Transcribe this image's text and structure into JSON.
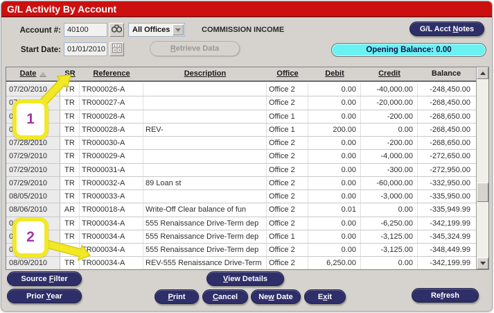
{
  "window": {
    "title": "G/L Activity By Account"
  },
  "toolbar": {
    "account_label": "Account #:",
    "account_value": "40100",
    "office_filter_value": "All Offices",
    "account_name": "COMMISSION INCOME",
    "start_date_label": "Start Date:",
    "start_date_value": "01/01/2010",
    "retrieve_button": {
      "pre": "",
      "key": "R",
      "post": "etrieve Data"
    },
    "notes_button": {
      "pre": "G/L Acct ",
      "key": "N",
      "post": "otes"
    },
    "opening_balance": "Opening Balance: 0.00"
  },
  "icons": {
    "find": "binoculars-icon",
    "date_picker": "calendar-icon",
    "office_dropdown": "chevron-down-icon",
    "date_sort": "sort-ascending-icon"
  },
  "table": {
    "columns": [
      {
        "label": "Date",
        "underline": true,
        "sort": "asc"
      },
      {
        "label": "SR",
        "underline": true
      },
      {
        "label": "Reference",
        "underline": true
      },
      {
        "label": "Description",
        "underline": true
      },
      {
        "label": "Office",
        "underline": true
      },
      {
        "label": "Debit",
        "underline": true
      },
      {
        "label": "Credit",
        "underline": true
      },
      {
        "label": "Balance",
        "underline": false
      }
    ],
    "column_keys": [
      "date",
      "sr",
      "reference",
      "description",
      "office",
      "debit",
      "credit",
      "balance"
    ],
    "rows": [
      [
        "07/20/2010",
        "TR",
        "TR000026-A",
        "",
        "Office 2",
        "0.00",
        "-40,000.00",
        "-248,450.00"
      ],
      [
        "07/21/2010",
        "TR",
        "TR000027-A",
        "",
        "Office 2",
        "0.00",
        "-20,000.00",
        "-268,450.00"
      ],
      [
        "07/26/2010",
        "TR",
        "TR000028-A",
        "",
        "Office 1",
        "0.00",
        "-200.00",
        "-268,650.00"
      ],
      [
        "07/26/2010",
        "TR",
        "TR000028-A",
        "REV-",
        "Office 1",
        "200.00",
        "0.00",
        "-268,450.00"
      ],
      [
        "07/28/2010",
        "TR",
        "TR000030-A",
        "",
        "Office 2",
        "0.00",
        "-200.00",
        "-268,650.00"
      ],
      [
        "07/29/2010",
        "TR",
        "TR000029-A",
        "",
        "Office 2",
        "0.00",
        "-4,000.00",
        "-272,650.00"
      ],
      [
        "07/29/2010",
        "TR",
        "TR000031-A",
        "",
        "Office 2",
        "0.00",
        "-300.00",
        "-272,950.00"
      ],
      [
        "07/29/2010",
        "TR",
        "TR000032-A",
        "89 Loan st",
        "Office 2",
        "0.00",
        "-60,000.00",
        "-332,950.00"
      ],
      [
        "08/05/2010",
        "TR",
        "TR000033-A",
        "",
        "Office 2",
        "0.00",
        "-3,000.00",
        "-335,950.00"
      ],
      [
        "08/06/2010",
        "AR",
        "TR000018-A",
        "Write-Off Clear balance of fun",
        "Office 2",
        "0.01",
        "0.00",
        "-335,949.99"
      ],
      [
        "08/09/2010",
        "TR",
        "TR000034-A",
        "555 Renaissance Drive-Term dep",
        "Office 2",
        "0.00",
        "-6,250.00",
        "-342,199.99"
      ],
      [
        "08/09/2010",
        "TR",
        "TR000034-A",
        "555 Renaissance Drive-Term dep",
        "Office 1",
        "0.00",
        "-3,125.00",
        "-345,324.99"
      ],
      [
        "08/09/2010",
        "TR",
        "TR000034-A",
        "555 Renaissance Drive-Term dep",
        "Office 2",
        "0.00",
        "-3,125.00",
        "-348,449.99"
      ],
      [
        "08/09/2010",
        "TR",
        "TR000034-A",
        "REV-555 Renaissance Drive-Term",
        "Office 2",
        "6,250.00",
        "0.00",
        "-342,199.99"
      ]
    ]
  },
  "callouts": [
    {
      "label": "1"
    },
    {
      "label": "2"
    }
  ],
  "buttons": {
    "source_filter": {
      "pre": "Source ",
      "key": "F",
      "post": "ilter"
    },
    "prior_year": {
      "pre": "Prior ",
      "key": "Y",
      "post": "ear"
    },
    "view_details": {
      "pre": "",
      "key": "V",
      "post": "iew Details"
    },
    "print": {
      "pre": "",
      "key": "P",
      "post": "rint"
    },
    "cancel": {
      "pre": "",
      "key": "C",
      "post": "ancel"
    },
    "new_date": {
      "pre": "Ne",
      "key": "w",
      "post": " Date"
    },
    "exit": {
      "pre": "E",
      "key": "x",
      "post": "it"
    },
    "refresh": {
      "pre": "Re",
      "key": "f",
      "post": "resh"
    }
  },
  "colors": {
    "title_bar": "#cc1010",
    "title_bar_border": "#8f0f12",
    "button_navy": "#2e2e68",
    "opening_balance_bg": "#6af2f2",
    "callout_yellow": "#f2e926",
    "callout_number": "#a335a8",
    "dialog_bg": "#d6d3ce"
  }
}
